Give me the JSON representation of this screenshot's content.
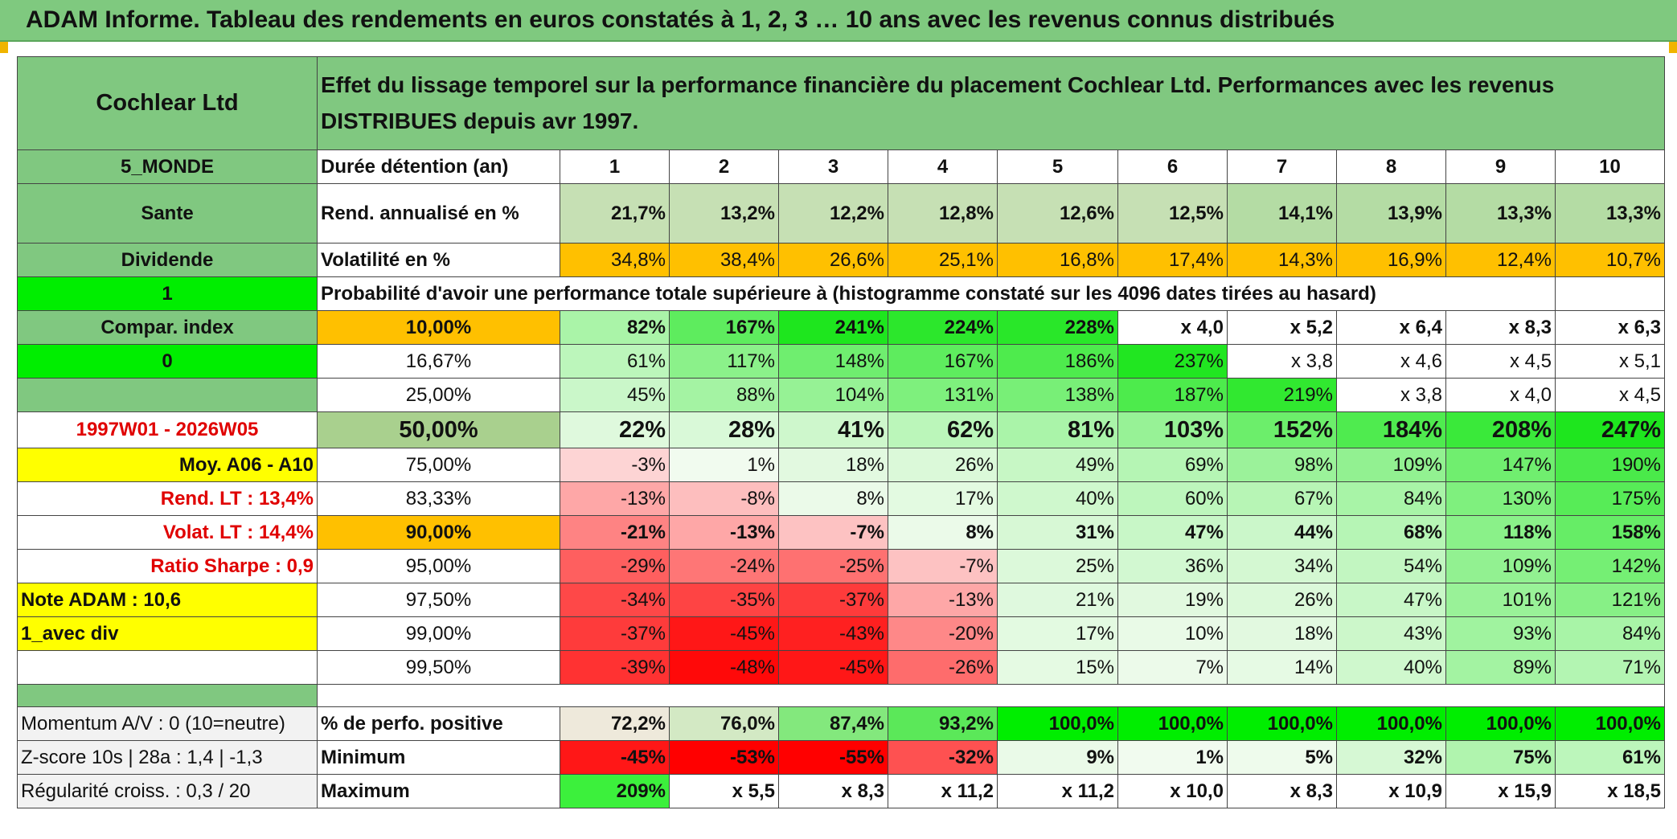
{
  "banner_title": "ADAM Informe. Tableau des rendements en euros constatés à 1, 2, 3 … 10 ans avec les revenus connus distribués",
  "company": "Cochlear Ltd",
  "description": "Effet du lissage temporel sur la performance financière du placement Cochlear Ltd. Performances avec les revenus DISTRIBUES depuis avr 1997.",
  "left_col": {
    "zone": "5_MONDE",
    "sector": "Sante",
    "dividend": "Dividende",
    "flag1": "1",
    "compar_index": "Compar. index",
    "flag0": "0",
    "period": "1997W01 - 2026W05",
    "moy": "Moy. A06 - A10",
    "rend_lt": "Rend. LT :   13,4%",
    "volat_lt": "Volat. LT :   14,4%",
    "sharpe": "Ratio Sharpe :    0,9",
    "note": "Note ADAM : 10,6",
    "avec_div": "1_avec div",
    "momentum": "Momentum A/V : 0 (10=neutre)",
    "zscore": "Z-score 10s | 28a : 1,4 | -1,3",
    "regularite": "Régularité croiss. : 0,3 / 20"
  },
  "durations_label": "Durée détention (an)",
  "durations": [
    "1",
    "2",
    "3",
    "4",
    "5",
    "6",
    "7",
    "8",
    "9",
    "10"
  ],
  "rend_label": "Rend. annualisé en %",
  "rend": [
    "21,7%",
    "13,2%",
    "12,2%",
    "12,8%",
    "12,6%",
    "12,5%",
    "14,1%",
    "13,9%",
    "13,3%",
    "13,3%"
  ],
  "vol_label": "Volatilité en %",
  "vol": [
    "34,8%",
    "38,4%",
    "26,6%",
    "25,1%",
    "16,8%",
    "17,4%",
    "14,3%",
    "16,9%",
    "12,4%",
    "10,7%"
  ],
  "prob_label": "Probabilité d'avoir une performance totale supérieure à (histogramme constaté sur les 4096 dates tirées au hasard)",
  "prob_rows": [
    {
      "p": "10,00%",
      "v": [
        "82%",
        "167%",
        "241%",
        "224%",
        "228%",
        "x 4,0",
        "x 5,2",
        "x 6,4",
        "x 8,3",
        "x 6,3"
      ]
    },
    {
      "p": "16,67%",
      "v": [
        "61%",
        "117%",
        "148%",
        "167%",
        "186%",
        "237%",
        "x 3,8",
        "x 4,6",
        "x 4,5",
        "x 5,1"
      ]
    },
    {
      "p": "25,00%",
      "v": [
        "45%",
        "88%",
        "104%",
        "131%",
        "138%",
        "187%",
        "219%",
        "x 3,8",
        "x 4,0",
        "x 4,5"
      ]
    },
    {
      "p": "50,00%",
      "v": [
        "22%",
        "28%",
        "41%",
        "62%",
        "81%",
        "103%",
        "152%",
        "184%",
        "208%",
        "247%"
      ]
    },
    {
      "p": "75,00%",
      "v": [
        "-3%",
        "1%",
        "18%",
        "26%",
        "49%",
        "69%",
        "98%",
        "109%",
        "147%",
        "190%"
      ]
    },
    {
      "p": "83,33%",
      "v": [
        "-13%",
        "-8%",
        "8%",
        "17%",
        "40%",
        "60%",
        "67%",
        "84%",
        "130%",
        "175%"
      ]
    },
    {
      "p": "90,00%",
      "v": [
        "-21%",
        "-13%",
        "-7%",
        "8%",
        "31%",
        "47%",
        "44%",
        "68%",
        "118%",
        "158%"
      ]
    },
    {
      "p": "95,00%",
      "v": [
        "-29%",
        "-24%",
        "-25%",
        "-7%",
        "25%",
        "36%",
        "34%",
        "54%",
        "109%",
        "142%"
      ]
    },
    {
      "p": "97,50%",
      "v": [
        "-34%",
        "-35%",
        "-37%",
        "-13%",
        "21%",
        "19%",
        "26%",
        "47%",
        "101%",
        "121%"
      ]
    },
    {
      "p": "99,00%",
      "v": [
        "-37%",
        "-45%",
        "-43%",
        "-20%",
        "17%",
        "10%",
        "18%",
        "43%",
        "93%",
        "84%"
      ]
    },
    {
      "p": "99,50%",
      "v": [
        "-39%",
        "-48%",
        "-45%",
        "-26%",
        "15%",
        "7%",
        "14%",
        "40%",
        "89%",
        "71%"
      ]
    }
  ],
  "pos_label": "% de perfo. positive",
  "pos": [
    "72,2%",
    "76,0%",
    "87,4%",
    "93,2%",
    "100,0%",
    "100,0%",
    "100,0%",
    "100,0%",
    "100,0%",
    "100,0%"
  ],
  "min_label": "Minimum",
  "min": [
    "-45%",
    "-53%",
    "-55%",
    "-32%",
    "9%",
    "1%",
    "5%",
    "32%",
    "75%",
    "61%"
  ],
  "max_label": "Maximum",
  "max": [
    "209%",
    "x 5,5",
    "x 8,3",
    "x 11,2",
    "x 11,2",
    "x 10,0",
    "x 8,3",
    "x 10,9",
    "x 15,9",
    "x 18,5"
  ],
  "colors": {
    "banner_green": "#7fc97f",
    "header_green": "#80c880",
    "light_green": "#c6e0b4",
    "orange": "#ffc000",
    "bright_green": "#00ee00",
    "yellow": "#ffff00",
    "red_text": "#e00000"
  }
}
